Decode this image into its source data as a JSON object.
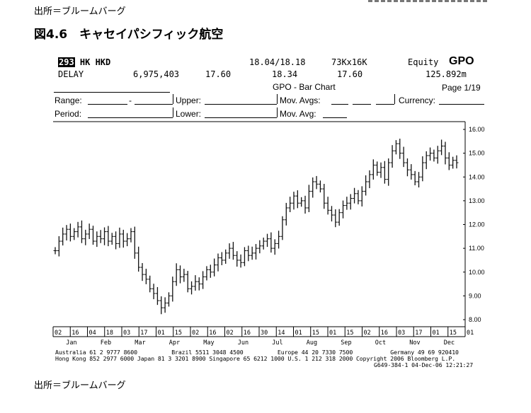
{
  "source_label": "出所＝ブルームバーグ",
  "figure_title": "図4.6　キャセイパシフィック航空",
  "terminal": {
    "ticker_code": "293",
    "ticker_rest": " HK HKD",
    "dates": "18.04/18.18",
    "size": "73Kx16K",
    "equity_label": "Equity",
    "function": "GPO",
    "delay": "DELAY",
    "volume": "6,975,403",
    "last": "17.60",
    "price2": "18.34",
    "price3": "17.60",
    "value": "125.892m",
    "chart_name": "GPO - Bar Chart",
    "page": "Page 1/19",
    "labels": {
      "range": "Range:",
      "dash": "-",
      "upper": "Upper:",
      "mov_avgs": "Mov. Avgs:",
      "currency": "Currency:",
      "period": "Period:",
      "lower": "Lower:",
      "mov_avg": "Mov. Avg:"
    },
    "footer_line1": "Australia 61 2 9777 8600          Brazil 5511 3048 4500          Europe 44 20 7330 7500           Germany 49 69 920410",
    "footer_line2": "Hong Kong 852 2977 6000 Japan 81 3 3201 8900 Singapore 65 6212 1000 U.S. 1 212 318 2000 Copyright 2006 Bloomberg L.P.",
    "footer_line3": "G649-384-1 04-Dec-06 12:21:27"
  },
  "chart_data": {
    "type": "bar",
    "title": "GPO - Bar Chart",
    "ylim": [
      8.0,
      16.0
    ],
    "y_ticks": [
      "16.00",
      "15.00",
      "14.00",
      "13.00",
      "12.00",
      "11.00",
      "10.00",
      "9.00",
      "8.00"
    ],
    "x_day_ticks": [
      "02",
      "16",
      "04",
      "18",
      "03",
      "17",
      "01",
      "15",
      "02",
      "16",
      "02",
      "16",
      "30",
      "14",
      "01",
      "15",
      "01",
      "15",
      "02",
      "16",
      "03",
      "17",
      "01",
      "15",
      "01"
    ],
    "x_month_labels": [
      "Jan",
      "Feb",
      "Mar",
      "Apr",
      "May",
      "Jun",
      "Jul",
      "Aug",
      "Sep",
      "Oct",
      "Nov",
      "Dec"
    ],
    "grid": false,
    "series": [
      {
        "x_start": "2006-01-02",
        "x_end": "2006-12-04",
        "close": [
          10.9,
          11.3,
          11.6,
          11.8,
          11.5,
          11.7,
          11.9,
          11.4,
          11.6,
          11.8,
          11.3,
          11.5,
          11.4,
          11.7,
          11.3,
          11.5,
          11.2,
          11.6,
          11.3,
          11.4,
          11.7,
          10.8,
          10.2,
          9.9,
          9.7,
          9.3,
          9.1,
          8.8,
          8.5,
          8.7,
          9.0,
          9.6,
          10.1,
          9.8,
          9.9,
          9.3,
          9.4,
          9.6,
          9.5,
          9.8,
          10.1,
          10.0,
          10.3,
          10.6,
          10.5,
          10.8,
          11.0,
          10.7,
          10.5,
          10.4,
          10.9,
          10.7,
          10.8,
          11.0,
          11.1,
          11.3,
          11.4,
          11.0,
          11.2,
          11.5,
          12.2,
          12.7,
          12.9,
          13.2,
          12.9,
          13.0,
          12.7,
          13.4,
          13.8,
          13.7,
          13.5,
          12.9,
          12.6,
          12.4,
          12.1,
          12.5,
          12.8,
          12.9,
          13.1,
          13.3,
          13.0,
          13.4,
          13.8,
          14.1,
          14.5,
          14.2,
          14.4,
          13.9,
          14.6,
          15.1,
          15.4,
          15.0,
          14.6,
          14.3,
          14.1,
          13.8,
          14.0,
          14.6,
          14.9,
          15.0,
          14.8,
          15.1,
          15.3,
          14.8,
          14.5,
          14.7,
          14.6
        ]
      }
    ]
  }
}
